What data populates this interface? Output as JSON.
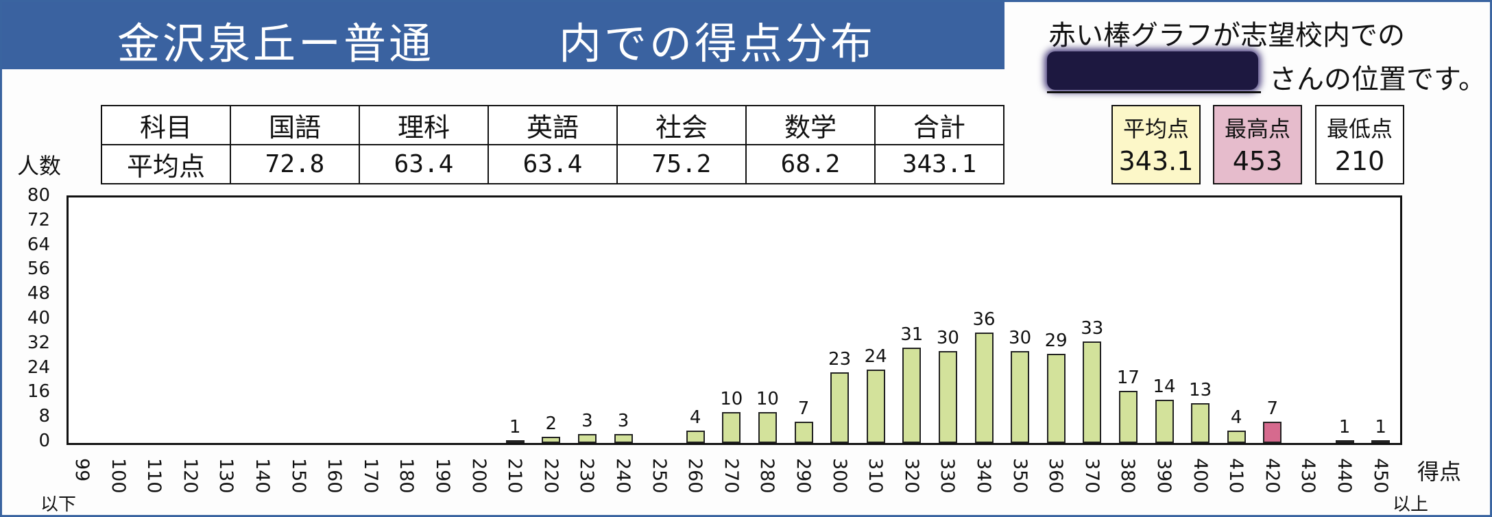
{
  "title": {
    "part1": "金沢泉丘ー普通",
    "part2": "内での得点分布"
  },
  "note": {
    "line1": "赤い棒グラフが志望校内での",
    "line2": "さんの位置です。"
  },
  "subject_table": {
    "header": [
      "科目",
      "国語",
      "理科",
      "英語",
      "社会",
      "数学",
      "合計"
    ],
    "row": [
      "平均点",
      "72.8",
      "63.4",
      "63.4",
      "75.2",
      "68.2",
      "343.1"
    ]
  },
  "stats": {
    "avg_label": "平均点",
    "avg_value": "343.1",
    "max_label": "最高点",
    "max_value": "453",
    "min_label": "最低点",
    "min_value": "210"
  },
  "colors": {
    "bar": "#d3e29b",
    "highlight": "#d66a8e",
    "banner": "#3a62a0",
    "avg_box": "#fcf7c8",
    "max_box": "#e6bccc"
  },
  "chart_data": {
    "type": "bar",
    "ylabel": "人数",
    "xlabel": "得点",
    "x_first_note": "以下",
    "x_last_note": "以上",
    "ylim": [
      0,
      80
    ],
    "yticks": [
      0,
      8,
      16,
      24,
      32,
      40,
      48,
      56,
      64,
      72,
      80
    ],
    "categories": [
      "99",
      "100",
      "110",
      "120",
      "130",
      "140",
      "150",
      "160",
      "170",
      "180",
      "190",
      "200",
      "210",
      "220",
      "230",
      "240",
      "250",
      "260",
      "270",
      "280",
      "290",
      "300",
      "310",
      "320",
      "330",
      "340",
      "350",
      "360",
      "370",
      "380",
      "390",
      "400",
      "410",
      "420",
      "430",
      "440",
      "450"
    ],
    "values": [
      0,
      0,
      0,
      0,
      0,
      0,
      0,
      0,
      0,
      0,
      0,
      0,
      1,
      2,
      3,
      3,
      0,
      4,
      10,
      10,
      7,
      23,
      24,
      31,
      30,
      36,
      30,
      29,
      33,
      17,
      14,
      13,
      4,
      7,
      0,
      1,
      1
    ],
    "highlight_category": "420",
    "grid": false
  }
}
